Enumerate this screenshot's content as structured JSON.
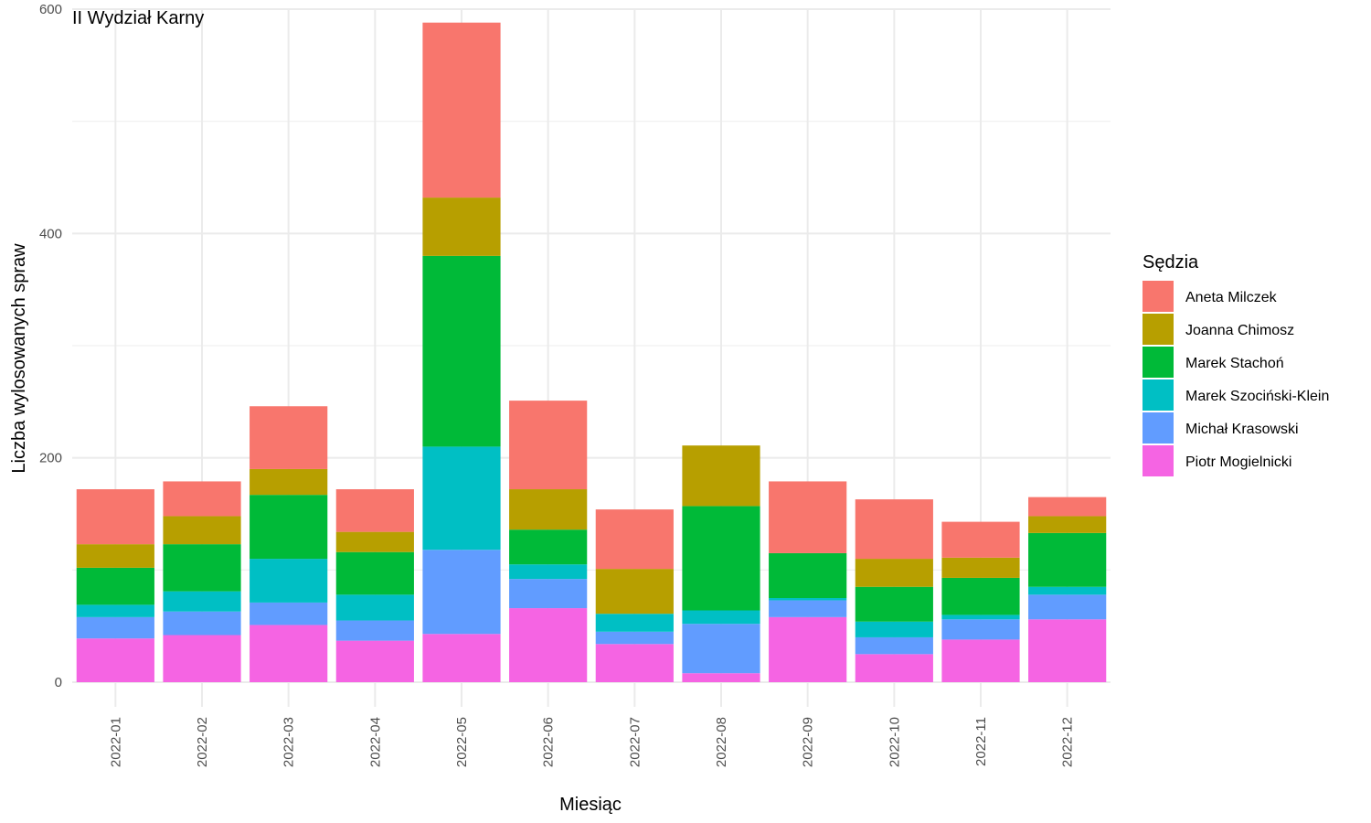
{
  "chart_data": {
    "type": "bar",
    "stacked": true,
    "title": "II Wydział Karny",
    "xlabel": "Miesiąc",
    "ylabel": "Liczba wylosowanych spraw",
    "ylim": [
      -22,
      600
    ],
    "y_ticks": [
      0,
      200,
      400,
      600
    ],
    "grid": true,
    "legend_title": "Sędzia",
    "legend_position": "right",
    "categories": [
      "2022-01",
      "2022-02",
      "2022-03",
      "2022-04",
      "2022-05",
      "2022-06",
      "2022-07",
      "2022-08",
      "2022-09",
      "2022-10",
      "2022-11",
      "2022-12"
    ],
    "series": [
      {
        "name": "Piotr Mogielnicki",
        "color": "#F564E3",
        "values": [
          39,
          42,
          51,
          37,
          43,
          66,
          34,
          8,
          58,
          25,
          38,
          56
        ]
      },
      {
        "name": "Michał Krasowski",
        "color": "#619CFF",
        "values": [
          19,
          21,
          20,
          18,
          75,
          26,
          11,
          44,
          15,
          15,
          18,
          22
        ]
      },
      {
        "name": "Marek Szociński-Klein",
        "color": "#00BFC4",
        "values": [
          11,
          18,
          39,
          23,
          92,
          13,
          16,
          12,
          2,
          14,
          4,
          7
        ]
      },
      {
        "name": "Marek Stachoń",
        "color": "#00BA38",
        "values": [
          33,
          42,
          57,
          38,
          170,
          31,
          0,
          93,
          40,
          31,
          33,
          48
        ]
      },
      {
        "name": "Joanna Chimosz",
        "color": "#B79F00",
        "values": [
          21,
          25,
          23,
          18,
          52,
          36,
          40,
          54,
          0,
          25,
          18,
          15
        ]
      },
      {
        "name": "Aneta Milczek",
        "color": "#F8766D",
        "values": [
          49,
          31,
          56,
          38,
          156,
          79,
          53,
          0,
          64,
          53,
          32,
          17
        ]
      }
    ]
  }
}
